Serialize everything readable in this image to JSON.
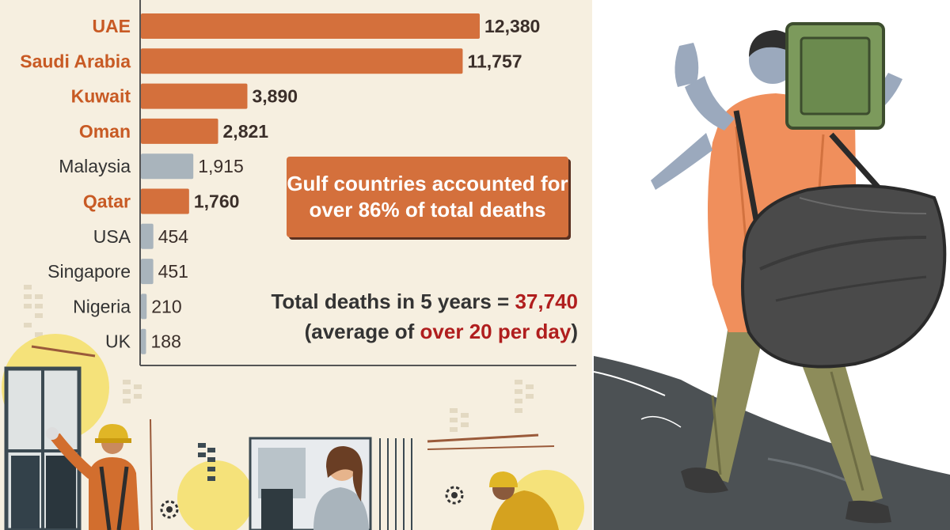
{
  "chart_data": {
    "type": "bar",
    "orientation": "horizontal",
    "categories": [
      "UAE",
      "Saudi Arabia",
      "Kuwait",
      "Oman",
      "Malaysia",
      "Qatar",
      "USA",
      "Singapore",
      "Nigeria",
      "UK"
    ],
    "values": [
      12380,
      11757,
      3890,
      2821,
      1915,
      1760,
      454,
      451,
      210,
      188
    ],
    "value_labels": [
      "12,380",
      "11,757",
      "3,890",
      "2,821",
      "1,915",
      "1,760",
      "454",
      "451",
      "210",
      "188"
    ],
    "group": [
      "gulf",
      "gulf",
      "gulf",
      "gulf",
      "other",
      "gulf",
      "other",
      "other",
      "other",
      "other"
    ],
    "colors": {
      "gulf": "#d4703c",
      "other": "#a9b4bc",
      "gulf_text": "#c85a24",
      "other_text": "#333333",
      "value_text": "#3b2f2a"
    },
    "xlim": [
      0,
      12380
    ],
    "title": "",
    "xlabel": "",
    "ylabel": ""
  },
  "callout": {
    "line1": "Gulf countries accounted for",
    "line2": "over 86% of total deaths"
  },
  "total": {
    "line1_prefix": "Total deaths in 5 years = ",
    "line1_value": "37,740",
    "line2_prefix": "(average of ",
    "line2_highlight": "over 20 per day",
    "line2_suffix": ")"
  },
  "illustrations": {
    "bottom_strip": "workers-illustration",
    "right_panel": "migrant-worker-with-bags-illustration"
  }
}
